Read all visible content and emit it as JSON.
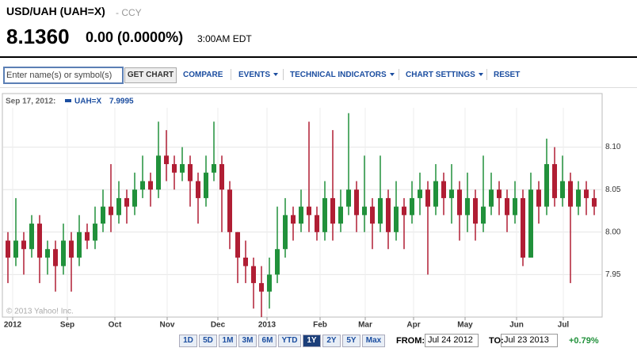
{
  "header": {
    "title": "USD/UAH (UAH=X)",
    "exchange": "- CCY",
    "price": "8.1360",
    "change": "0.00 (0.0000%)",
    "time": "3:00AM EDT"
  },
  "toolbar": {
    "input_placeholder": "Enter name(s) or symbol(s)",
    "button": "GET CHART",
    "links": [
      "COMPARE",
      "EVENTS",
      "TECHNICAL INDICATORS",
      "CHART SETTINGS",
      "RESET"
    ]
  },
  "chart_data": {
    "type": "candlestick",
    "legend_date": "Sep 17, 2012:",
    "legend_name": "UAH=X",
    "legend_value": 7.9995,
    "watermark": "© 2013 Yahoo! Inc.",
    "up_color": "#21913b",
    "down_color": "#b01e34",
    "open": [
      7.99,
      7.97,
      7.99,
      7.98,
      8.01,
      7.97,
      7.98,
      7.96,
      7.99,
      7.97,
      8.0,
      7.99,
      8.01,
      8.03,
      8.02,
      8.04,
      8.03,
      8.05,
      8.06,
      8.05,
      8.09,
      8.08,
      8.07,
      8.08,
      8.06,
      8.04,
      8.07,
      8.08,
      8.05,
      8.0,
      7.97,
      7.96,
      7.94,
      7.93,
      7.95,
      7.98,
      8.02,
      8.01,
      8.03,
      8.02,
      8.0,
      8.04,
      8.01,
      8.03,
      8.05,
      8.02,
      8.03,
      8.01,
      8.04,
      8.0,
      8.03,
      8.02,
      8.04,
      8.05,
      8.03,
      8.06,
      8.04,
      8.05,
      8.02,
      8.04,
      8.01,
      8.03,
      8.05,
      8.04,
      8.02,
      8.04,
      7.97,
      8.05,
      8.03,
      8.08,
      8.04,
      8.06,
      8.03,
      8.05,
      8.04
    ],
    "high": [
      8.0,
      8.04,
      8.0,
      8.02,
      8.02,
      7.99,
      7.99,
      8.01,
      8.0,
      8.02,
      8.01,
      8.03,
      8.05,
      8.08,
      8.06,
      8.05,
      8.07,
      8.09,
      8.07,
      8.13,
      8.12,
      8.09,
      8.1,
      8.09,
      8.07,
      8.09,
      8.13,
      8.09,
      8.06,
      8.0,
      7.99,
      7.97,
      7.96,
      7.97,
      8.03,
      8.04,
      8.03,
      8.05,
      8.13,
      8.03,
      8.06,
      8.12,
      8.05,
      8.14,
      8.06,
      8.09,
      8.04,
      8.09,
      8.05,
      8.06,
      8.04,
      8.06,
      8.07,
      8.06,
      8.08,
      8.07,
      8.08,
      8.06,
      8.07,
      8.05,
      8.09,
      8.07,
      8.06,
      8.05,
      8.06,
      8.05,
      8.07,
      8.06,
      8.11,
      8.1,
      8.09,
      8.07,
      8.06,
      8.06,
      8.05
    ],
    "low": [
      7.94,
      7.96,
      7.95,
      7.97,
      7.94,
      7.95,
      7.93,
      7.95,
      7.93,
      7.96,
      7.98,
      7.98,
      8.0,
      8.0,
      8.01,
      8.01,
      8.02,
      8.04,
      8.03,
      8.04,
      8.06,
      8.05,
      8.06,
      8.03,
      8.01,
      8.03,
      8.06,
      8.0,
      7.98,
      7.94,
      7.94,
      7.91,
      7.9,
      7.91,
      7.94,
      7.97,
      7.99,
      8.0,
      8.0,
      7.99,
      7.99,
      7.99,
      8.0,
      8.02,
      8.0,
      8.0,
      7.98,
      8.0,
      7.98,
      7.99,
      7.98,
      8.01,
      8.02,
      7.95,
      8.02,
      8.02,
      8.01,
      7.99,
      8.0,
      7.99,
      8.0,
      8.02,
      8.02,
      8.0,
      8.01,
      7.96,
      7.97,
      8.01,
      8.02,
      8.03,
      8.03,
      7.94,
      8.02,
      8.02,
      8.02
    ],
    "close": [
      7.97,
      7.99,
      7.98,
      8.01,
      7.97,
      7.98,
      7.96,
      7.99,
      7.97,
      8.0,
      7.99,
      8.01,
      8.03,
      8.02,
      8.04,
      8.03,
      8.05,
      8.06,
      8.05,
      8.09,
      8.08,
      8.07,
      8.08,
      8.06,
      8.04,
      8.07,
      8.08,
      8.05,
      8.0,
      7.97,
      7.96,
      7.94,
      7.93,
      7.95,
      7.98,
      8.02,
      8.01,
      8.03,
      8.02,
      8.0,
      8.04,
      8.01,
      8.03,
      8.05,
      8.02,
      8.03,
      8.01,
      8.04,
      8.0,
      8.03,
      8.02,
      8.04,
      8.05,
      8.03,
      8.06,
      8.04,
      8.05,
      8.02,
      8.04,
      8.01,
      8.03,
      8.05,
      8.04,
      8.02,
      8.04,
      7.97,
      8.05,
      8.03,
      8.08,
      8.04,
      8.06,
      8.03,
      8.05,
      8.04,
      8.03
    ],
    "ylim": [
      7.9,
      8.15
    ],
    "yticks": [
      {
        "value": 8.1,
        "label": "8.10"
      },
      {
        "value": 8.05,
        "label": "8.05"
      },
      {
        "value": 8.0,
        "label": "8.00"
      },
      {
        "value": 7.95,
        "label": "7.95"
      }
    ],
    "xticks": [
      {
        "value": 0.6,
        "label": "2012"
      },
      {
        "value": 7.5,
        "label": "Sep"
      },
      {
        "value": 13.5,
        "label": "Oct"
      },
      {
        "value": 20.1,
        "label": "Nov"
      },
      {
        "value": 26.5,
        "label": "Dec"
      },
      {
        "value": 32.7,
        "label": "2013"
      },
      {
        "value": 39.4,
        "label": "Feb"
      },
      {
        "value": 45.1,
        "label": "Mar"
      },
      {
        "value": 51.2,
        "label": "Apr"
      },
      {
        "value": 57.7,
        "label": "May"
      },
      {
        "value": 64.2,
        "label": "Jun"
      },
      {
        "value": 70.1,
        "label": "Jul"
      }
    ],
    "grid": true
  },
  "footer": {
    "range_buttons": [
      {
        "label": "1D",
        "active": false
      },
      {
        "label": "5D",
        "active": false
      },
      {
        "label": "1M",
        "active": false
      },
      {
        "label": "3M",
        "active": false
      },
      {
        "label": "6M",
        "active": false
      },
      {
        "label": "YTD",
        "active": false
      },
      {
        "label": "1Y",
        "active": true
      },
      {
        "label": "2Y",
        "active": false
      },
      {
        "label": "5Y",
        "active": false
      },
      {
        "label": "Max",
        "active": false
      }
    ],
    "from_label": "FROM:",
    "from_value": "Jul 24 2012",
    "to_label": "TO:",
    "to_value": "Jul 23 2013",
    "change": "+0.79%"
  }
}
